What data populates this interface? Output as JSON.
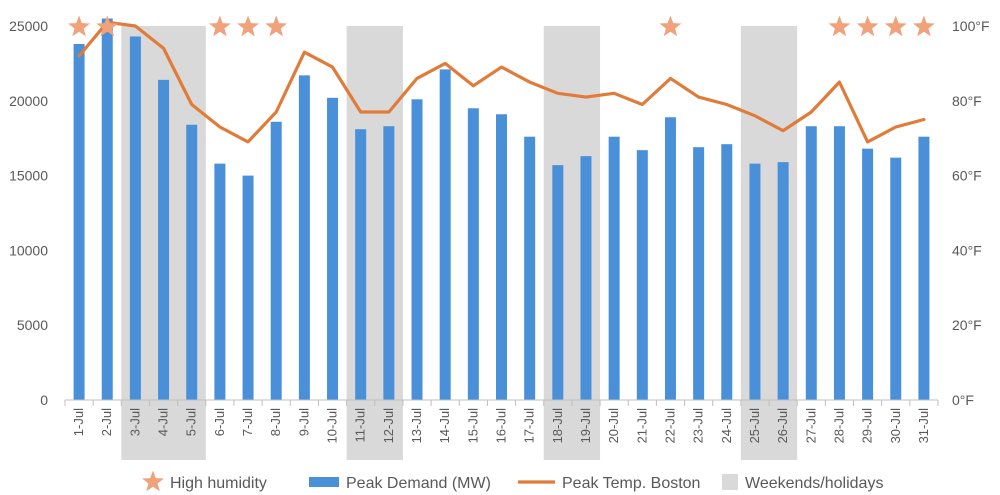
{
  "chart_data": {
    "type": "bar",
    "categories": [
      "1-Jul",
      "2-Jul",
      "3-Jul",
      "4-Jul",
      "5-Jul",
      "6-Jul",
      "7-Jul",
      "8-Jul",
      "9-Jul",
      "10-Jul",
      "11-Jul",
      "12-Jul",
      "13-Jul",
      "14-Jul",
      "15-Jul",
      "16-Jul",
      "17-Jul",
      "18-Jul",
      "19-Jul",
      "20-Jul",
      "21-Jul",
      "22-Jul",
      "23-Jul",
      "24-Jul",
      "25-Jul",
      "26-Jul",
      "27-Jul",
      "28-Jul",
      "29-Jul",
      "30-Jul",
      "31-Jul"
    ],
    "series": [
      {
        "name": "Peak Demand (MW)",
        "type": "bar",
        "axis": "left",
        "color": "#4a90d9",
        "values": [
          23800,
          25500,
          24300,
          21400,
          18400,
          15800,
          15000,
          18600,
          21700,
          20200,
          18100,
          18300,
          20100,
          22100,
          19500,
          19100,
          17600,
          15700,
          16300,
          17600,
          16700,
          18900,
          16900,
          17100,
          15800,
          15900,
          18300,
          18300,
          16800,
          16200,
          17600
        ]
      },
      {
        "name": "Peak Temp. Boston",
        "type": "line",
        "axis": "right",
        "color": "#e07b39",
        "values": [
          92,
          101,
          100,
          94,
          79,
          73,
          69,
          77,
          93,
          89,
          77,
          77,
          86,
          90,
          84,
          89,
          85,
          82,
          81,
          82,
          79,
          86,
          81,
          79,
          76,
          72,
          77,
          85,
          69,
          73,
          75
        ]
      }
    ],
    "high_humidity_days": [
      "1-Jul",
      "2-Jul",
      "6-Jul",
      "7-Jul",
      "8-Jul",
      "22-Jul",
      "28-Jul",
      "29-Jul",
      "30-Jul",
      "31-Jul"
    ],
    "weekends_holidays": [
      "3-Jul",
      "4-Jul",
      "5-Jul",
      "11-Jul",
      "12-Jul",
      "18-Jul",
      "19-Jul",
      "25-Jul",
      "26-Jul"
    ],
    "y_left": {
      "ylim": [
        0,
        25000
      ],
      "ticks": [
        "0",
        "5000",
        "10000",
        "15000",
        "20000",
        "25000"
      ]
    },
    "y_right": {
      "ylim": [
        0,
        100
      ],
      "ticks": [
        "0°F",
        "20°F",
        "40°F",
        "60°F",
        "80°F",
        "100°F"
      ]
    },
    "legend": {
      "position": "bottom",
      "items": [
        {
          "label": "High humidity",
          "marker": "star",
          "color": "#f0a27a"
        },
        {
          "label": "Peak Demand (MW)",
          "marker": "bar",
          "color": "#4a90d9"
        },
        {
          "label": "Peak Temp. Boston",
          "marker": "line",
          "color": "#e07b39"
        },
        {
          "label": "Weekends/holidays",
          "marker": "box",
          "color": "#d9d9d9"
        }
      ]
    },
    "colors": {
      "shade": "#d9d9d9",
      "star": "#f0a27a",
      "axis": "#bfbfbf",
      "text": "#595959"
    },
    "grid": false
  }
}
